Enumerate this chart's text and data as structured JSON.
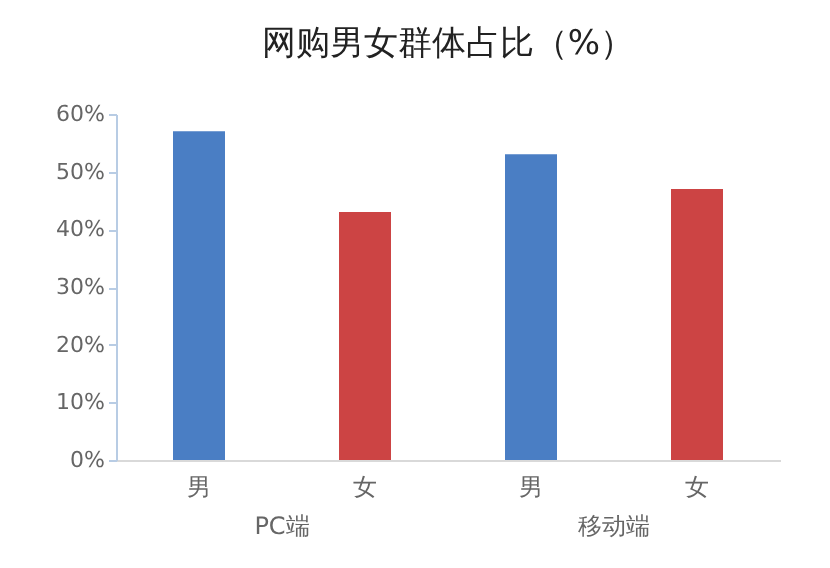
{
  "chart_data": {
    "type": "bar",
    "title": "网购男女群体占比（%）",
    "categories": [
      "男",
      "女",
      "男",
      "女"
    ],
    "values": [
      57,
      43,
      53,
      47
    ],
    "colors": [
      "#4a7ec4",
      "#cc4444",
      "#4a7ec4",
      "#cc4444"
    ],
    "ylim": [
      0,
      60
    ],
    "yticks": [
      {
        "value": 0,
        "label": "0%"
      },
      {
        "value": 10,
        "label": "10%"
      },
      {
        "value": 20,
        "label": "20%"
      },
      {
        "value": 30,
        "label": "30%"
      },
      {
        "value": 40,
        "label": "40%"
      },
      {
        "value": 50,
        "label": "50%"
      },
      {
        "value": 60,
        "label": "60%"
      }
    ],
    "annotations": [
      "PC端",
      "移动端"
    ]
  }
}
